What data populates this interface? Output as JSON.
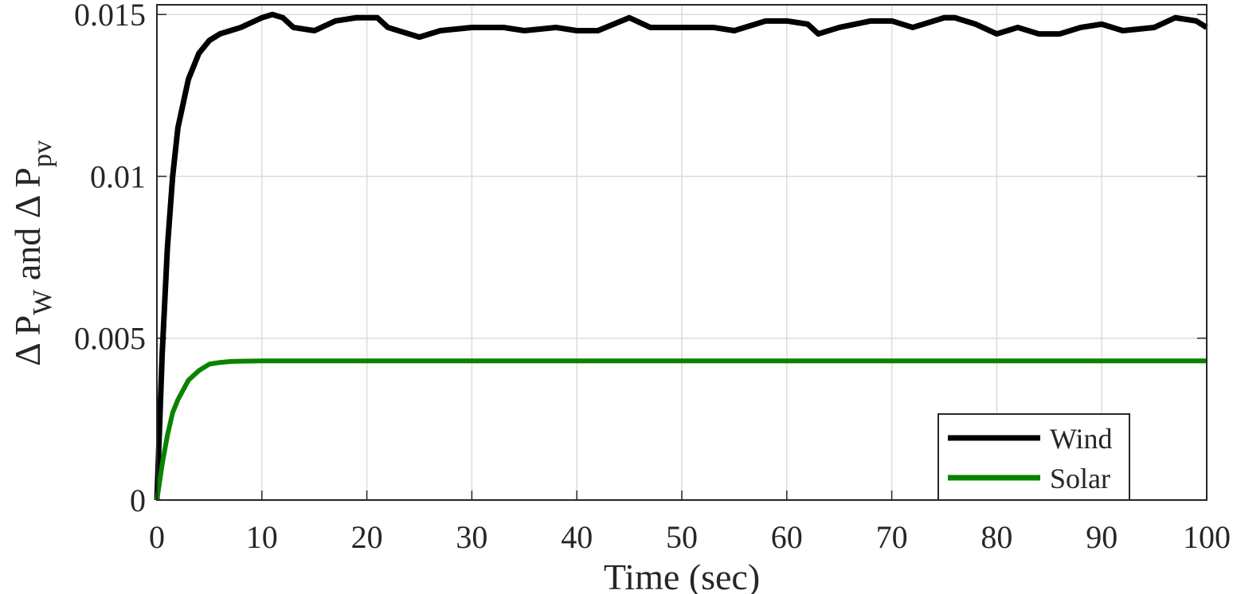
{
  "chart_data": {
    "type": "line",
    "xlabel": "Time (sec)",
    "ylabel_parts": [
      "Δ P",
      "W",
      " and Δ P",
      "pv"
    ],
    "x": [
      0,
      0.5,
      1,
      1.5,
      2,
      3,
      4,
      5,
      6,
      7,
      8,
      10,
      11,
      12,
      13,
      15,
      17,
      19,
      20,
      21,
      22,
      24,
      25,
      27,
      30,
      33,
      35,
      38,
      40,
      42,
      45,
      47,
      50,
      53,
      55,
      58,
      60,
      62,
      63,
      65,
      68,
      70,
      72,
      75,
      76,
      78,
      80,
      82,
      84,
      86,
      88,
      90,
      92,
      95,
      97,
      99,
      100
    ],
    "series": [
      {
        "name": "Wind",
        "color": "#000000",
        "values": [
          0,
          0.0045,
          0.0078,
          0.01,
          0.0115,
          0.013,
          0.0138,
          0.0142,
          0.0144,
          0.0145,
          0.0146,
          0.0149,
          0.015,
          0.0149,
          0.0146,
          0.0145,
          0.0148,
          0.0149,
          0.0149,
          0.0149,
          0.0146,
          0.0144,
          0.0143,
          0.0145,
          0.0146,
          0.0146,
          0.0145,
          0.0146,
          0.0145,
          0.0145,
          0.0149,
          0.0146,
          0.0146,
          0.0146,
          0.0145,
          0.0148,
          0.0148,
          0.0147,
          0.0144,
          0.0146,
          0.0148,
          0.0148,
          0.0146,
          0.0149,
          0.0149,
          0.0147,
          0.0144,
          0.0146,
          0.0144,
          0.0144,
          0.0146,
          0.0147,
          0.0145,
          0.0146,
          0.0149,
          0.0148,
          0.0146
        ]
      },
      {
        "name": "Solar",
        "color": "#0a8200",
        "values": [
          0,
          0.0011,
          0.002,
          0.0027,
          0.0031,
          0.0037,
          0.004,
          0.0042,
          0.00425,
          0.00428,
          0.00429,
          0.0043,
          0.0043,
          0.0043,
          0.0043,
          0.0043,
          0.0043,
          0.0043,
          0.0043,
          0.0043,
          0.0043,
          0.0043,
          0.0043,
          0.0043,
          0.0043,
          0.0043,
          0.0043,
          0.0043,
          0.0043,
          0.0043,
          0.0043,
          0.0043,
          0.0043,
          0.0043,
          0.0043,
          0.0043,
          0.0043,
          0.0043,
          0.0043,
          0.0043,
          0.0043,
          0.0043,
          0.0043,
          0.0043,
          0.0043,
          0.0043,
          0.0043,
          0.0043,
          0.0043,
          0.0043,
          0.0043,
          0.0043,
          0.0043,
          0.0043,
          0.0043,
          0.0043,
          0.0043
        ]
      }
    ],
    "xlim": [
      0,
      100
    ],
    "xticks": [
      0,
      10,
      20,
      30,
      40,
      50,
      60,
      70,
      80,
      90,
      100
    ],
    "ylim": [
      0,
      0.0153
    ],
    "yticks": [
      0,
      0.005,
      0.01,
      0.015
    ],
    "grid": true,
    "legend": "lower right"
  }
}
